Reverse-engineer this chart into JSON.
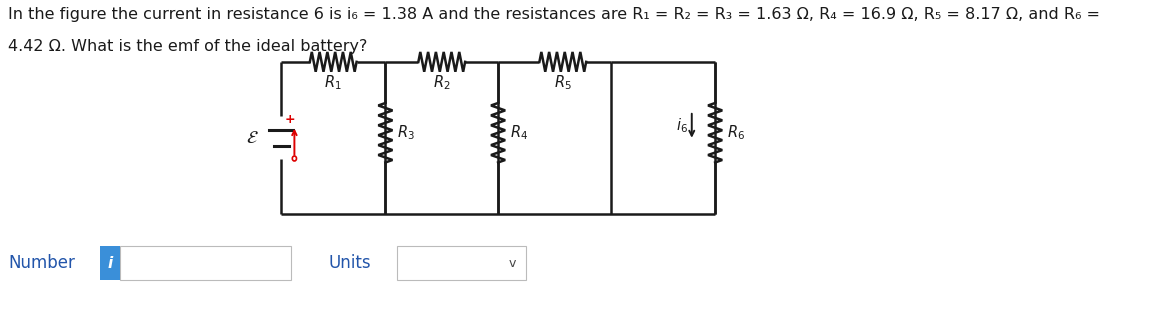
{
  "line1": "In the figure the current in resistance 6 is i₆ = 1.38 A and the resistances are R₁ = R₂ = R₃ = 1.63 Ω, R₄ = 16.9 Ω, R₅ = 8.17 Ω, and R₆ =",
  "line2": "4.42 Ω. What is the emf of the ideal battery?",
  "number_label": "Number",
  "units_label": "Units",
  "bg_color": "#ffffff",
  "text_color": "#1a1a1a",
  "title_fontsize": 11.5,
  "circuit_color": "#1a1a1a",
  "number_box_color": "#3a8fd9",
  "ui_text_color": "#2255aa"
}
